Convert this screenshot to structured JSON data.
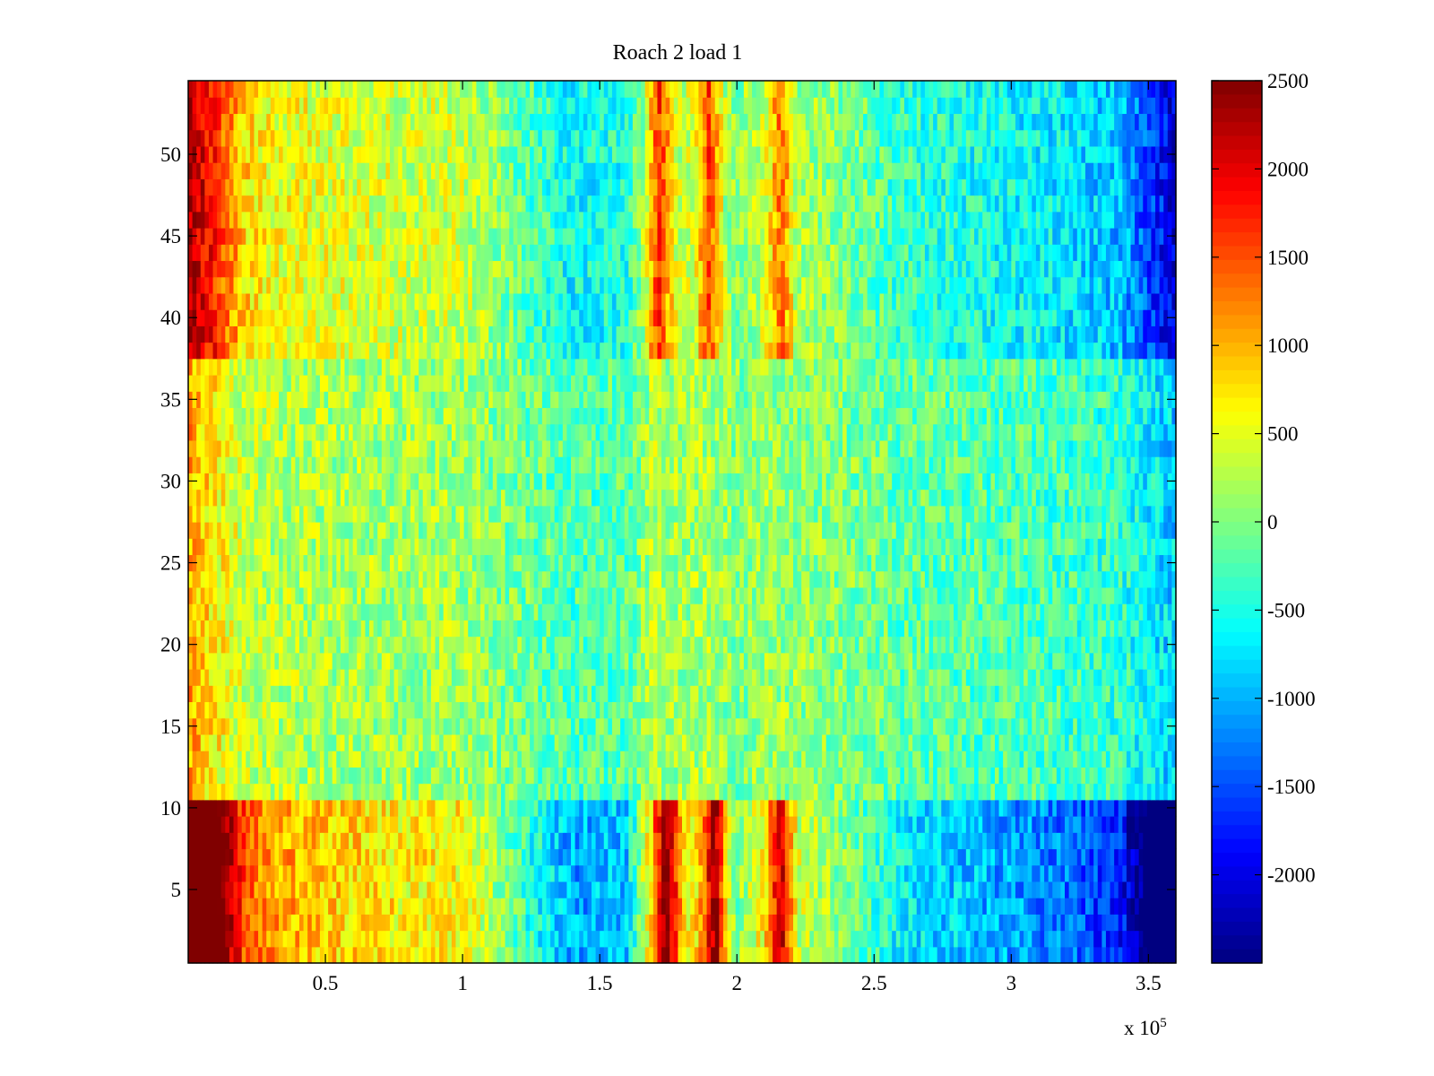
{
  "chart_data": {
    "type": "heatmap",
    "title": "Roach 2 load 1",
    "xlabel": "",
    "ylabel": "",
    "x_multiplier_label": {
      "base": "x 10",
      "exponent": "5"
    },
    "xlim": [
      0,
      3.6
    ],
    "ylim": [
      0.5,
      54.5
    ],
    "x_ticks": [
      0.5,
      1,
      1.5,
      2,
      2.5,
      3,
      3.5
    ],
    "x_tick_labels": [
      "0.5",
      "1",
      "1.5",
      "2",
      "2.5",
      "3",
      "3.5"
    ],
    "y_ticks": [
      5,
      10,
      15,
      20,
      25,
      30,
      35,
      40,
      45,
      50
    ],
    "y_tick_labels": [
      "5",
      "10",
      "15",
      "20",
      "25",
      "30",
      "35",
      "40",
      "45",
      "50"
    ],
    "rows": 54,
    "colorbar": {
      "colormap": "jet",
      "clim": [
        -2500,
        2500
      ],
      "ticks": [
        2500,
        2000,
        1500,
        1000,
        500,
        0,
        -500,
        -1000,
        -1500,
        -2000
      ],
      "tick_labels": [
        "2500",
        "2000",
        "1500",
        "1000",
        "500",
        "0",
        "-500",
        "-1000",
        "-1500",
        "-2000"
      ]
    },
    "column_profile": {
      "x": [
        0,
        0.1,
        0.2,
        0.3,
        0.5,
        0.8,
        1.0,
        1.2,
        1.4,
        1.6,
        1.7,
        1.8,
        1.9,
        2.0,
        2.1,
        2.2,
        2.4,
        2.6,
        2.8,
        3.0,
        3.2,
        3.4,
        3.5,
        3.6
      ],
      "value": [
        2000,
        1400,
        700,
        500,
        400,
        300,
        300,
        -100,
        -500,
        -400,
        500,
        300,
        400,
        0,
        300,
        200,
        0,
        -300,
        -400,
        -500,
        -600,
        -800,
        -1300,
        -1700
      ]
    },
    "row_groups": [
      {
        "rows": [
          1,
          10
        ],
        "edge_value": 2300,
        "contrast": 2.2,
        "spike_centers": [
          1.75,
          1.92,
          2.16
        ],
        "spike_value": 1700
      },
      {
        "rows": [
          11,
          37
        ],
        "edge_value": 1100,
        "contrast": 0.5,
        "spike_centers": [],
        "spike_value": 0
      },
      {
        "rows": [
          38,
          54
        ],
        "edge_value": 1900,
        "contrast": 1.2,
        "spike_centers": [
          1.72,
          1.9,
          2.16
        ],
        "spike_value": 1100
      }
    ]
  }
}
